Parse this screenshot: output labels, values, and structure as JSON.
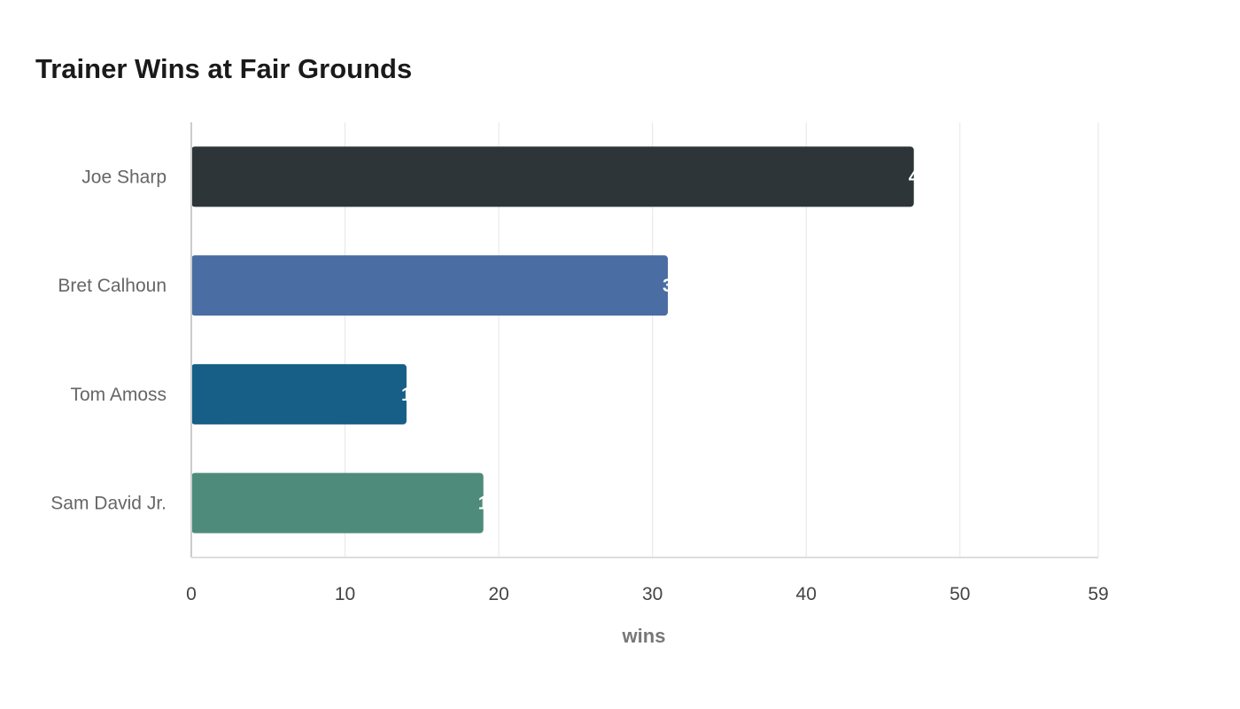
{
  "chart_data": {
    "type": "bar",
    "orientation": "horizontal",
    "title": "Trainer Wins at Fair Grounds",
    "xlabel": "wins",
    "ylabel": "",
    "categories": [
      "Joe Sharp",
      "Bret Calhoun",
      "Tom Amoss",
      "Sam David Jr."
    ],
    "values": [
      47,
      31,
      14,
      19
    ],
    "colors": [
      "#2e3538",
      "#4a6ea3",
      "#175f87",
      "#4f8b7b"
    ],
    "xlim": [
      0,
      59
    ],
    "xticks": [
      0,
      10,
      20,
      30,
      40,
      50,
      59
    ],
    "grid": "vertical",
    "legend": "none"
  }
}
